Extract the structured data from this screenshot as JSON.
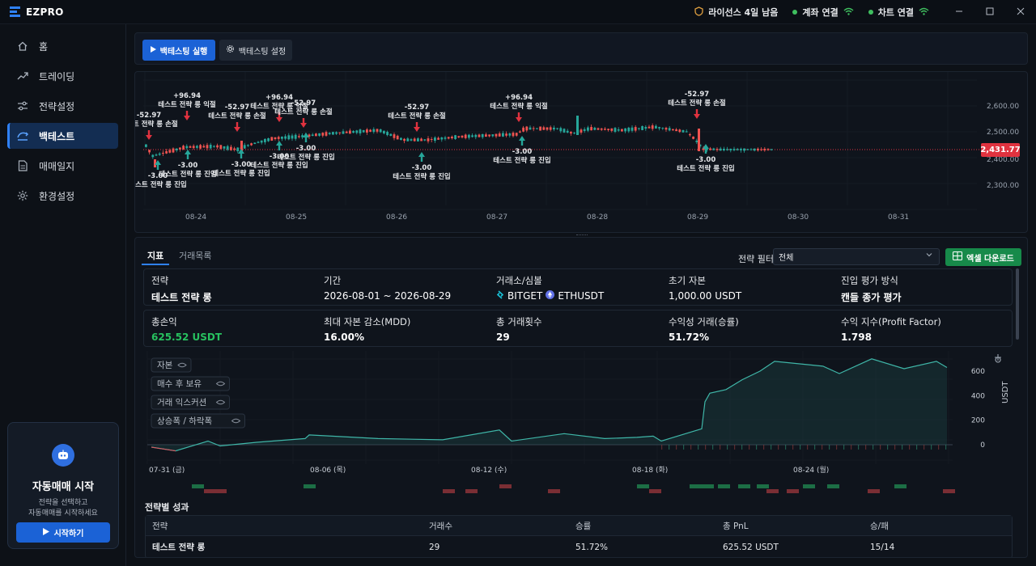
{
  "app": {
    "title": "EZPRO"
  },
  "titlebar": {
    "license": "라이선스 4일 남음",
    "account": "계좌 연결",
    "chart": "차트 연결"
  },
  "sidebar": {
    "items": [
      {
        "label": "홈",
        "icon": "home-icon"
      },
      {
        "label": "트레이딩",
        "icon": "trend-icon"
      },
      {
        "label": "전략설정",
        "icon": "sliders-icon"
      },
      {
        "label": "백테스트",
        "icon": "backtest-icon",
        "active": true
      },
      {
        "label": "매매일지",
        "icon": "journal-icon"
      },
      {
        "label": "환경설정",
        "icon": "gear-icon"
      }
    ],
    "auto_card": {
      "title": "자동매매 시작",
      "desc1": "전략을 선택하고",
      "desc2": "자동매매를 시작하세요",
      "button": "시작하기"
    }
  },
  "toolbar": {
    "run_label": "백테스팅 실행",
    "settings_label": "백테스팅 설정"
  },
  "price_chart": {
    "current_price": "2,431.77",
    "y_ticks": [
      "2,600.00",
      "2,500.00",
      "2,400.00",
      "2,300.00"
    ],
    "x_ticks": [
      "08-24",
      "08-25",
      "08-26",
      "08-27",
      "08-28",
      "08-29",
      "08-30",
      "08-31"
    ],
    "annotations": [
      {
        "kind": "exit",
        "pnl": "-52.97",
        "text": "테스트 전략 롱 손절"
      },
      {
        "kind": "exit",
        "pnl": "+96.94",
        "text": "테스트 전략 롱 익절"
      },
      {
        "kind": "exit",
        "pnl": "-52.97",
        "text": "테스트 전략 롱 손절"
      },
      {
        "kind": "exit",
        "pnl": "+96.94",
        "text": "테스트 전략 롱 익절"
      },
      {
        "kind": "exit",
        "pnl": "-52.97",
        "text": "테스트 전략 롱 손절"
      },
      {
        "kind": "exit",
        "pnl": "-52.97",
        "text": "테스트 전략 롱 손절"
      },
      {
        "kind": "exit",
        "pnl": "+96.94",
        "text": "테스트 전략 롱 익절"
      },
      {
        "kind": "exit",
        "pnl": "-52.97",
        "text": "테스트 전략 롱 손절"
      },
      {
        "kind": "entry",
        "pnl": "-3.00",
        "text": "테스트 전략 롱 진입"
      },
      {
        "kind": "entry",
        "pnl": "-3.00",
        "text": "테스트 전략 롱 진입"
      },
      {
        "kind": "entry",
        "pnl": "-3.00",
        "text": "테스트 전략 롱 진입"
      },
      {
        "kind": "entry",
        "pnl": "-3.00",
        "text": "테스트 전략 롱 진입"
      },
      {
        "kind": "entry",
        "pnl": "-3.00",
        "text": "테스트 전략 롱 진입"
      },
      {
        "kind": "entry",
        "pnl": "-3.00",
        "text": "테스트 전략 롱 진입"
      },
      {
        "kind": "entry",
        "pnl": "-3.00",
        "text": "테스트 전략 롱 진입"
      },
      {
        "kind": "entry",
        "pnl": "-3.00",
        "text": "테스트 전략 롱 진입"
      }
    ]
  },
  "tabs": {
    "metrics": "지표",
    "trades": "거래목록"
  },
  "filter": {
    "label": "전략 필터",
    "value": "전체"
  },
  "excel_label": "엑셀 다운로드",
  "summary": {
    "strategy_label": "전략",
    "strategy_value": "테스트 전략 롱",
    "period_label": "기간",
    "period_value": "2026-08-01 ~ 2026-08-29",
    "exchange_label": "거래소/심볼",
    "exchange_value": "BITGET",
    "symbol_value": "ETHUSDT",
    "capital_label": "초기 자본",
    "capital_value": "1,000.00 USDT",
    "entry_label": "진입 평가 방식",
    "entry_value": "캔들 종가 평가"
  },
  "metrics": {
    "pnl_label": "총손익",
    "pnl_value": "625.52 USDT",
    "mdd_label": "최대 자본 감소(MDD)",
    "mdd_value": "16.00%",
    "trades_label": "총 거래횟수",
    "trades_value": "29",
    "win_label": "수익성 거래(승률)",
    "win_value": "51.72%",
    "pf_label": "수익 지수(Profit Factor)",
    "pf_value": "1.798"
  },
  "equity_chart": {
    "legend": [
      "자본",
      "매수 후 보유",
      "거래 익스커션",
      "상승폭 / 하락폭"
    ],
    "y_ticks": [
      "600",
      "400",
      "200",
      "0"
    ],
    "y_label": "USDT",
    "x_ticks": [
      "07-31 (금)",
      "08-06 (목)",
      "08-12 (수)",
      "08-18 (화)",
      "08-24 (월)"
    ]
  },
  "chart_data": {
    "type": "area",
    "title": "",
    "ylabel": "USDT",
    "ylim": [
      -50,
      700
    ],
    "x": [
      "07-31",
      "08-01",
      "08-02",
      "08-03",
      "08-04",
      "08-05",
      "08-06",
      "08-08",
      "08-10",
      "08-12",
      "08-13",
      "08-14",
      "08-15",
      "08-16",
      "08-17",
      "08-18",
      "08-19",
      "08-20",
      "08-20",
      "08-21",
      "08-21",
      "08-22",
      "08-22",
      "08-23",
      "08-24",
      "08-25",
      "08-26",
      "08-27",
      "08-28",
      "08-29"
    ],
    "series": [
      {
        "name": "자본",
        "values": [
          -20,
          -50,
          30,
          -10,
          20,
          50,
          80,
          50,
          40,
          120,
          30,
          90,
          50,
          60,
          70,
          30,
          110,
          130,
          350,
          420,
          450,
          530,
          600,
          680,
          640,
          580,
          700,
          620,
          680,
          630
        ]
      }
    ]
  },
  "performance": {
    "title": "전략별 성과",
    "columns": [
      "전략",
      "거래수",
      "승률",
      "총 PnL",
      "승/패"
    ],
    "rows": [
      {
        "strategy": "테스트 전략 롱",
        "trades": "29",
        "win_rate": "51.72%",
        "pnl": "625.52 USDT",
        "wl": "15/14"
      }
    ]
  },
  "colors": {
    "accent": "#1b62d6",
    "up": "#26a69a",
    "down": "#ef5350",
    "profit": "#27c15f"
  }
}
